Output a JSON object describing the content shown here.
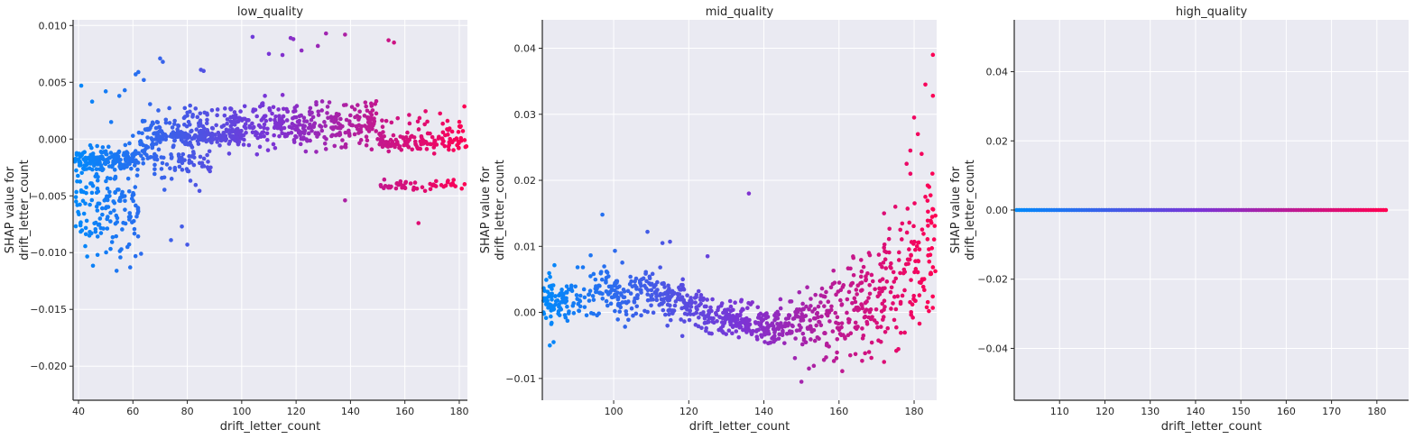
{
  "colors": {
    "plot_background": "#eaeaf2",
    "grid": "#ffffff",
    "spine": "#262626",
    "low_feature": "#008afb",
    "mid_feature": "#7a34d6",
    "high_feature": "#ff0052"
  },
  "chart_data": [
    {
      "type": "scatter",
      "title": "low_quality",
      "xlabel": "drift_letter_count",
      "ylabel_lines": [
        "SHAP value for",
        "drift_letter_count"
      ],
      "xlim": [
        38,
        183
      ],
      "ylim": [
        -0.023,
        0.0105
      ],
      "x_ticks": [
        40,
        60,
        80,
        100,
        120,
        140,
        160,
        180
      ],
      "x_tick_labels": [
        "40",
        "60",
        "80",
        "100",
        "120",
        "140",
        "160",
        "180"
      ],
      "y_ticks": [
        -0.02,
        -0.015,
        -0.01,
        -0.005,
        0.0,
        0.005,
        0.01
      ],
      "y_tick_labels": [
        "−0.020",
        "−0.015",
        "−0.010",
        "−0.005",
        "0.000",
        "0.005",
        "0.010"
      ],
      "color_by": "x",
      "clusters": [
        {
          "x": [
            38,
            62
          ],
          "y_center": -0.0018,
          "y_spread": 0.0006,
          "n": 150
        },
        {
          "x": [
            38,
            62
          ],
          "y_center": -0.005,
          "y_spread": 0.0025,
          "n": 120
        },
        {
          "x": [
            40,
            62
          ],
          "y_center": -0.008,
          "y_spread": 0.0015,
          "n": 40
        },
        {
          "x": [
            62,
            70
          ],
          "y_center": -0.0003,
          "y_spread": 0.0015,
          "n": 60
        },
        {
          "x": [
            68,
            100
          ],
          "y_center": 0.0002,
          "y_spread": 0.0004,
          "n": 160
        },
        {
          "x": [
            66,
            90
          ],
          "y_center": -0.002,
          "y_spread": 0.0012,
          "n": 70
        },
        {
          "x": [
            72,
            100
          ],
          "y_center": 0.0015,
          "y_spread": 0.0008,
          "n": 60
        },
        {
          "x": [
            95,
            150
          ],
          "y_center": 0.0012,
          "y_spread": 0.0012,
          "n": 330
        },
        {
          "x": [
            150,
            183
          ],
          "y_center": -0.0003,
          "y_spread": 0.0005,
          "n": 120
        },
        {
          "x": [
            150,
            183
          ],
          "y_center": -0.004,
          "y_spread": 0.0003,
          "n": 50
        },
        {
          "x": [
            150,
            183
          ],
          "y_center": 0.0012,
          "y_spread": 0.0008,
          "n": 30
        }
      ],
      "outliers": [
        [
          41,
          0.0047
        ],
        [
          45,
          0.0033
        ],
        [
          50,
          0.0042
        ],
        [
          52,
          0.0015
        ],
        [
          55,
          0.0038
        ],
        [
          57,
          0.0043
        ],
        [
          61,
          0.0057
        ],
        [
          62,
          0.0059
        ],
        [
          64,
          0.0052
        ],
        [
          70,
          0.0071
        ],
        [
          71,
          0.0068
        ],
        [
          85,
          0.0061
        ],
        [
          86,
          0.006
        ],
        [
          104,
          0.009
        ],
        [
          118,
          0.0089
        ],
        [
          119,
          0.0088
        ],
        [
          131,
          0.0093
        ],
        [
          138,
          0.0092
        ],
        [
          110,
          0.0075
        ],
        [
          115,
          0.0074
        ],
        [
          122,
          0.0078
        ],
        [
          128,
          0.0082
        ],
        [
          154,
          0.0087
        ],
        [
          156,
          0.0085
        ],
        [
          54,
          -0.0116
        ],
        [
          59,
          -0.0113
        ],
        [
          47,
          -0.0102
        ],
        [
          63,
          -0.0101
        ],
        [
          78,
          -0.0077
        ],
        [
          80,
          -0.0093
        ],
        [
          74,
          -0.0089
        ],
        [
          138,
          -0.0054
        ],
        [
          165,
          -0.0074
        ],
        [
          58,
          -0.0095
        ],
        [
          44,
          -0.0085
        ]
      ],
      "show_bottom_spine": true
    },
    {
      "type": "scatter",
      "title": "mid_quality",
      "xlabel": "drift_letter_count",
      "ylabel_lines": [
        "SHAP value for",
        "drift_letter_count"
      ],
      "xlim": [
        81,
        186
      ],
      "ylim": [
        -0.0133,
        0.0443
      ],
      "x_ticks": [
        100,
        120,
        140,
        160,
        180
      ],
      "x_tick_labels": [
        "100",
        "120",
        "140",
        "160",
        "180"
      ],
      "y_ticks": [
        -0.01,
        0.0,
        0.01,
        0.02,
        0.03,
        0.04
      ],
      "y_tick_labels": [
        "−0.01",
        "0.00",
        "0.01",
        "0.02",
        "0.03",
        "0.04"
      ],
      "color_by": "x",
      "trend": [
        [
          81,
          0.0015
        ],
        [
          95,
          0.0028
        ],
        [
          110,
          0.003
        ],
        [
          118,
          0.0015
        ],
        [
          125,
          -0.0005
        ],
        [
          135,
          -0.0015
        ],
        [
          143,
          -0.0025
        ],
        [
          150,
          -0.001
        ],
        [
          160,
          0.0
        ],
        [
          170,
          0.002
        ],
        [
          178,
          0.006
        ],
        [
          186,
          0.01
        ]
      ],
      "spread": [
        [
          81,
          0.0018
        ],
        [
          110,
          0.0018
        ],
        [
          125,
          0.0012
        ],
        [
          145,
          0.0015
        ],
        [
          155,
          0.003
        ],
        [
          170,
          0.0045
        ],
        [
          186,
          0.006
        ]
      ],
      "n": 950,
      "outliers": [
        [
          97,
          0.0148
        ],
        [
          109,
          0.0122
        ],
        [
          115,
          0.0107
        ],
        [
          113,
          0.0105
        ],
        [
          136,
          0.018
        ],
        [
          125,
          0.0085
        ],
        [
          180,
          0.0295
        ],
        [
          181,
          0.027
        ],
        [
          183,
          0.0345
        ],
        [
          185,
          0.039
        ],
        [
          185,
          0.0328
        ],
        [
          186,
          0.0263
        ],
        [
          182,
          0.024
        ],
        [
          179,
          0.0245
        ],
        [
          178,
          0.0225
        ],
        [
          179,
          0.021
        ],
        [
          184,
          0.019
        ],
        [
          183,
          0.0175
        ],
        [
          175,
          0.016
        ],
        [
          172,
          0.015
        ],
        [
          150,
          -0.0105
        ],
        [
          152,
          -0.0085
        ],
        [
          156,
          -0.0072
        ],
        [
          83,
          -0.005
        ],
        [
          84,
          -0.0045
        ],
        [
          172,
          -0.0075
        ],
        [
          168,
          -0.006
        ],
        [
          163,
          -0.0065
        ]
      ],
      "show_bottom_spine": false
    },
    {
      "type": "scatter",
      "title": "high_quality",
      "xlabel": "drift_letter_count",
      "ylabel_lines": [
        "SHAP value for",
        "drift_letter_count"
      ],
      "xlim": [
        100,
        187
      ],
      "ylim": [
        -0.055,
        0.055
      ],
      "x_ticks": [
        110,
        120,
        130,
        140,
        150,
        160,
        170,
        180
      ],
      "x_tick_labels": [
        "110",
        "120",
        "130",
        "140",
        "150",
        "160",
        "170",
        "180"
      ],
      "y_ticks": [
        -0.04,
        -0.02,
        0.0,
        0.02,
        0.04
      ],
      "y_tick_labels": [
        "−0.04",
        "−0.02",
        "0.00",
        "0.02",
        "0.04"
      ],
      "color_by": "x",
      "x_range": [
        100,
        182
      ],
      "y_constant": 0.0,
      "n": 150,
      "show_bottom_spine": true
    }
  ]
}
